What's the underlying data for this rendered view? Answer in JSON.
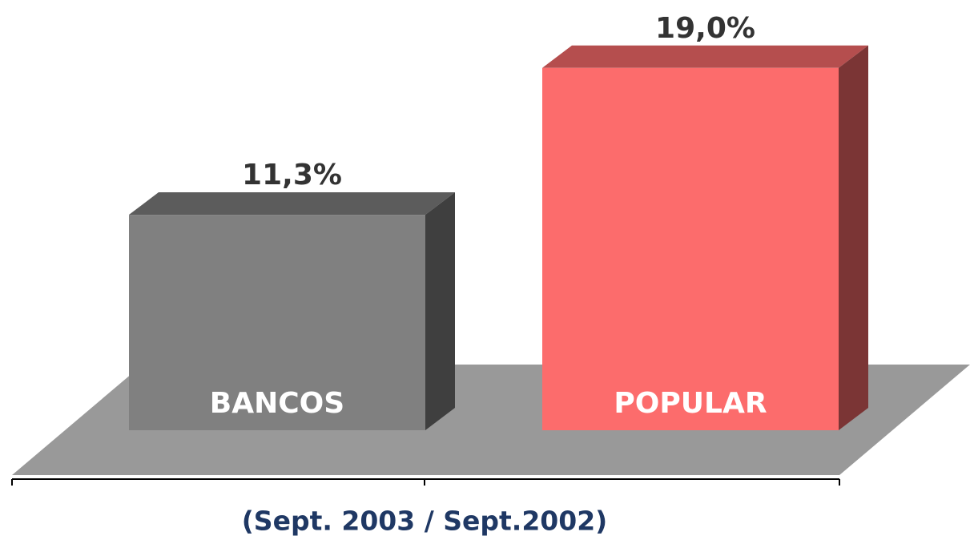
{
  "chart_data": {
    "type": "bar3d",
    "categories": [
      "BANCOS",
      "POPULAR"
    ],
    "values": [
      11.3,
      19.0
    ],
    "value_labels": [
      "11,3%",
      "19,0%"
    ],
    "colors": [
      "#808080",
      "#fc6c6c"
    ],
    "x_label": "(Sept. 2003 / Sept.2002)"
  }
}
